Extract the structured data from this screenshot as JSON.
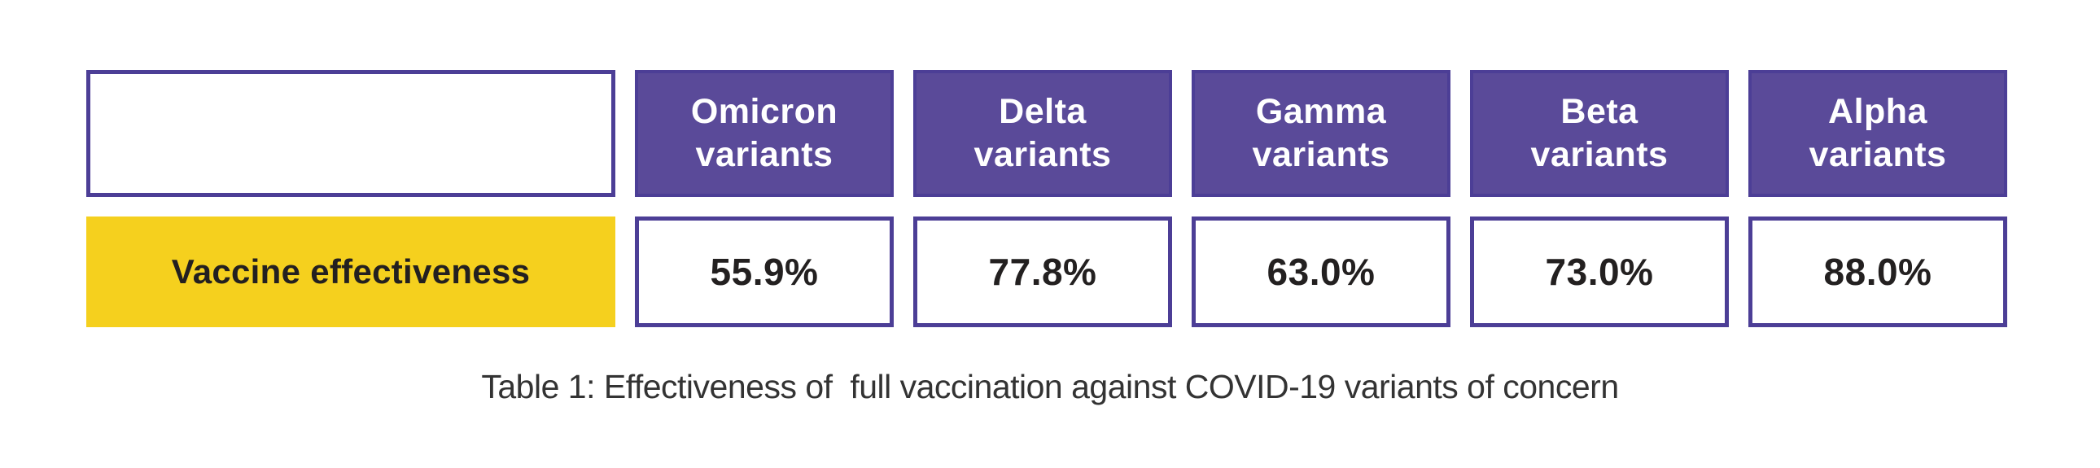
{
  "table": {
    "header_row": {
      "corner": "",
      "columns": [
        {
          "name": "Omicron",
          "suffix": "variants"
        },
        {
          "name": "Delta",
          "suffix": "variants"
        },
        {
          "name": "Gamma",
          "suffix": "variants"
        },
        {
          "name": "Beta",
          "suffix": "variants"
        },
        {
          "name": "Alpha",
          "suffix": "variants"
        }
      ]
    },
    "data_row": {
      "label": "Vaccine effectiveness",
      "values": [
        "55.9%",
        "77.8%",
        "63.0%",
        "73.0%",
        "88.0%"
      ]
    }
  },
  "caption": "Table 1: Effectiveness of  full vaccination against COVID-19 variants of concern",
  "colors": {
    "header_fill": "#5a4a99",
    "box_border": "#4c3e96",
    "label_fill": "#f5d01e",
    "dark_text": "#232020",
    "header_text": "#ffffff",
    "caption_text": "#333333"
  },
  "chart_data": {
    "type": "table",
    "title": "Table 1: Effectiveness of full vaccination against COVID-19 variants of concern",
    "categories": [
      "Omicron variants",
      "Delta variants",
      "Gamma variants",
      "Beta variants",
      "Alpha variants"
    ],
    "series": [
      {
        "name": "Vaccine effectiveness",
        "values": [
          55.9,
          77.8,
          63.0,
          73.0,
          88.0
        ]
      }
    ],
    "unit": "%"
  }
}
